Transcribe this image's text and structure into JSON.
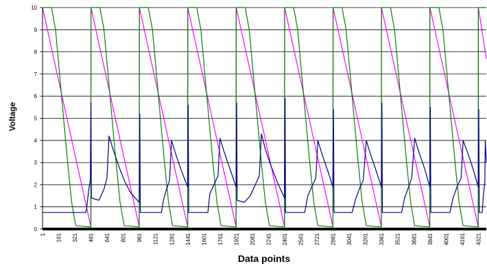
{
  "chart_data": {
    "type": "line",
    "title": "",
    "xlabel": "Data points",
    "ylabel": "Voltage",
    "ylim": [
      0,
      10
    ],
    "y_ticks": [
      "0",
      "1",
      "2",
      "3",
      "4",
      "5",
      "6",
      "7",
      "8",
      "9",
      "10"
    ],
    "x_tick_labels": [
      "1",
      "161",
      "321",
      "481",
      "641",
      "801",
      "961",
      "1121",
      "1281",
      "1441",
      "1601",
      "1761",
      "1921",
      "2081",
      "2241",
      "2401",
      "2561",
      "2721",
      "2881",
      "3041",
      "3201",
      "3361",
      "3521",
      "3681",
      "3841",
      "4001",
      "4161",
      "4321"
    ],
    "xlim": [
      1,
      4400
    ],
    "grid": "horizontal",
    "legend": "none",
    "cycle_starts": [
      1,
      480,
      960,
      1440,
      1920,
      2400,
      2880,
      3360,
      3840,
      4320
    ],
    "series": [
      {
        "color": "#ff00ff",
        "points": [
          [
            1,
            10
          ],
          [
            480,
            0.1
          ],
          [
            481,
            10
          ],
          [
            960,
            0.1
          ],
          [
            961,
            10
          ],
          [
            1440,
            0.1
          ],
          [
            1441,
            10
          ],
          [
            1920,
            0.1
          ],
          [
            1921,
            10
          ],
          [
            2400,
            0.1
          ],
          [
            2401,
            10
          ],
          [
            2880,
            0.1
          ],
          [
            2881,
            10
          ],
          [
            3360,
            0.1
          ],
          [
            3361,
            10
          ],
          [
            3840,
            0.1
          ],
          [
            3841,
            10
          ],
          [
            4320,
            0.1
          ],
          [
            4321,
            10
          ],
          [
            4400,
            7.7
          ]
        ]
      },
      {
        "color": "#008000",
        "points": [
          [
            1,
            10
          ],
          [
            90,
            10
          ],
          [
            130,
            9.0
          ],
          [
            170,
            7.0
          ],
          [
            210,
            5.0
          ],
          [
            250,
            3.0
          ],
          [
            290,
            1.2
          ],
          [
            330,
            0.15
          ],
          [
            480,
            0.1
          ],
          [
            481,
            10
          ],
          [
            570,
            10
          ],
          [
            610,
            9.0
          ],
          [
            650,
            7.0
          ],
          [
            690,
            5.0
          ],
          [
            730,
            3.0
          ],
          [
            770,
            1.2
          ],
          [
            810,
            0.15
          ],
          [
            960,
            0.1
          ],
          [
            961,
            10
          ],
          [
            1050,
            10
          ],
          [
            1090,
            9.0
          ],
          [
            1130,
            7.0
          ],
          [
            1170,
            5.0
          ],
          [
            1210,
            3.0
          ],
          [
            1250,
            1.2
          ],
          [
            1290,
            0.15
          ],
          [
            1440,
            0.1
          ],
          [
            1441,
            10
          ],
          [
            1530,
            10
          ],
          [
            1570,
            9.0
          ],
          [
            1610,
            7.0
          ],
          [
            1650,
            5.0
          ],
          [
            1690,
            3.0
          ],
          [
            1730,
            1.2
          ],
          [
            1770,
            0.15
          ],
          [
            1920,
            0.1
          ],
          [
            1921,
            10
          ],
          [
            2010,
            10
          ],
          [
            2050,
            9.0
          ],
          [
            2090,
            7.0
          ],
          [
            2130,
            5.0
          ],
          [
            2170,
            3.0
          ],
          [
            2210,
            1.2
          ],
          [
            2250,
            0.15
          ],
          [
            2400,
            0.1
          ],
          [
            2401,
            10
          ],
          [
            2490,
            10
          ],
          [
            2530,
            9.0
          ],
          [
            2570,
            7.0
          ],
          [
            2610,
            5.0
          ],
          [
            2650,
            3.0
          ],
          [
            2690,
            1.2
          ],
          [
            2730,
            0.15
          ],
          [
            2880,
            0.1
          ],
          [
            2881,
            10
          ],
          [
            2970,
            10
          ],
          [
            3010,
            9.0
          ],
          [
            3050,
            7.0
          ],
          [
            3090,
            5.0
          ],
          [
            3130,
            3.0
          ],
          [
            3170,
            1.2
          ],
          [
            3210,
            0.15
          ],
          [
            3360,
            0.1
          ],
          [
            3361,
            10
          ],
          [
            3450,
            10
          ],
          [
            3490,
            9.0
          ],
          [
            3530,
            7.0
          ],
          [
            3570,
            5.0
          ],
          [
            3610,
            3.0
          ],
          [
            3650,
            1.2
          ],
          [
            3690,
            0.15
          ],
          [
            3840,
            0.1
          ],
          [
            3841,
            10
          ],
          [
            3930,
            10
          ],
          [
            3970,
            9.0
          ],
          [
            4010,
            7.0
          ],
          [
            4050,
            5.0
          ],
          [
            4090,
            3.0
          ],
          [
            4130,
            1.2
          ],
          [
            4170,
            0.15
          ],
          [
            4320,
            0.1
          ],
          [
            4321,
            10
          ],
          [
            4400,
            10
          ]
        ]
      },
      {
        "color": "#000080",
        "points": [
          [
            1,
            0.75
          ],
          [
            430,
            0.75
          ],
          [
            440,
            1.0
          ],
          [
            460,
            1.8
          ],
          [
            475,
            2.2
          ],
          [
            480,
            5.7
          ],
          [
            485,
            1.4
          ],
          [
            560,
            1.3
          ],
          [
            610,
            1.8
          ],
          [
            640,
            2.3
          ],
          [
            660,
            4.2
          ],
          [
            700,
            3.6
          ],
          [
            760,
            2.8
          ],
          [
            820,
            2.1
          ],
          [
            880,
            1.6
          ],
          [
            960,
            1.2
          ],
          [
            965,
            5.2
          ],
          [
            970,
            0.75
          ],
          [
            1180,
            0.75
          ],
          [
            1200,
            1.3
          ],
          [
            1230,
            1.8
          ],
          [
            1260,
            2.2
          ],
          [
            1280,
            4.0
          ],
          [
            1320,
            3.4
          ],
          [
            1380,
            2.6
          ],
          [
            1440,
            1.9
          ],
          [
            1445,
            5.6
          ],
          [
            1450,
            0.75
          ],
          [
            1640,
            0.75
          ],
          [
            1660,
            1.6
          ],
          [
            1700,
            2.0
          ],
          [
            1740,
            2.4
          ],
          [
            1760,
            4.1
          ],
          [
            1800,
            3.5
          ],
          [
            1860,
            2.7
          ],
          [
            1920,
            1.9
          ],
          [
            1925,
            5.7
          ],
          [
            1930,
            1.3
          ],
          [
            2000,
            1.2
          ],
          [
            2060,
            1.5
          ],
          [
            2110,
            2.0
          ],
          [
            2150,
            2.4
          ],
          [
            2170,
            4.3
          ],
          [
            2210,
            3.6
          ],
          [
            2270,
            2.8
          ],
          [
            2330,
            2.1
          ],
          [
            2400,
            1.4
          ],
          [
            2405,
            5.9
          ],
          [
            2410,
            0.75
          ],
          [
            2600,
            0.75
          ],
          [
            2630,
            1.5
          ],
          [
            2680,
            2.0
          ],
          [
            2710,
            2.3
          ],
          [
            2730,
            4.0
          ],
          [
            2770,
            3.4
          ],
          [
            2830,
            2.6
          ],
          [
            2880,
            1.9
          ],
          [
            2885,
            5.4
          ],
          [
            2890,
            0.75
          ],
          [
            3070,
            0.75
          ],
          [
            3100,
            1.3
          ],
          [
            3140,
            1.8
          ],
          [
            3180,
            2.2
          ],
          [
            3210,
            4.0
          ],
          [
            3250,
            3.4
          ],
          [
            3310,
            2.6
          ],
          [
            3360,
            1.9
          ],
          [
            3365,
            5.7
          ],
          [
            3370,
            0.75
          ],
          [
            3560,
            0.75
          ],
          [
            3590,
            1.4
          ],
          [
            3630,
            1.9
          ],
          [
            3660,
            2.3
          ],
          [
            3690,
            4.1
          ],
          [
            3730,
            3.5
          ],
          [
            3790,
            2.7
          ],
          [
            3840,
            1.9
          ],
          [
            3845,
            5.5
          ],
          [
            3850,
            0.75
          ],
          [
            4040,
            0.75
          ],
          [
            4070,
            1.4
          ],
          [
            4110,
            1.9
          ],
          [
            4150,
            2.3
          ],
          [
            4170,
            4.0
          ],
          [
            4210,
            3.5
          ],
          [
            4270,
            2.7
          ],
          [
            4320,
            1.9
          ],
          [
            4325,
            5.4
          ],
          [
            4330,
            0.75
          ],
          [
            4360,
            0.75
          ],
          [
            4370,
            1.5
          ],
          [
            4385,
            2.1
          ],
          [
            4390,
            4.0
          ],
          [
            4400,
            3.0
          ]
        ]
      }
    ]
  }
}
